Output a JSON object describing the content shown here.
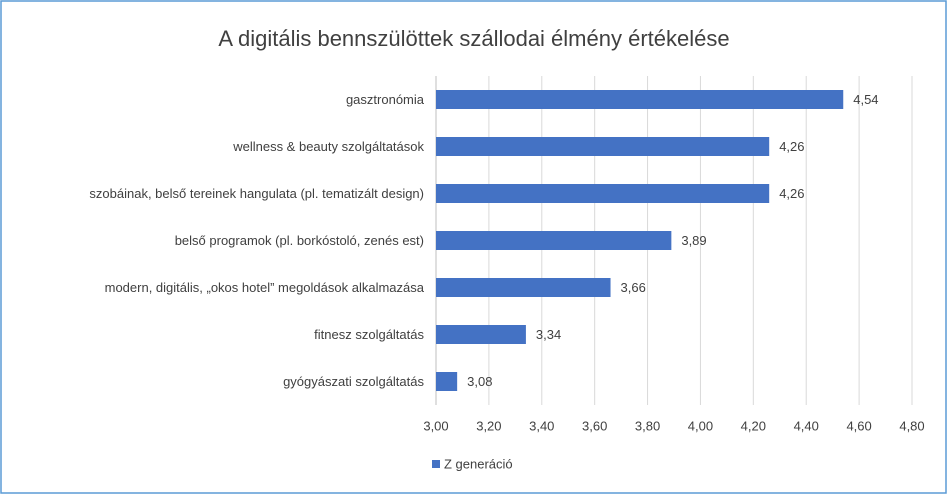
{
  "chart_data": {
    "type": "bar",
    "orientation": "horizontal",
    "title": "A digitális bennszülöttek szállodai élmény értékelése",
    "categories": [
      "gasztronómia",
      "wellness & beauty szolgáltatások",
      "szobáinak, belső tereinek hangulata (pl. tematizált design)",
      "belső programok (pl. borkóstoló, zenés est)",
      "modern, digitális, „okos hotel” megoldások alkalmazása",
      "fitnesz szolgáltatás",
      "gyógyászati szolgáltatás"
    ],
    "series": [
      {
        "name": "Z generáció",
        "color": "#4472c4",
        "values": [
          4.54,
          4.26,
          4.26,
          3.89,
          3.66,
          3.34,
          3.08
        ],
        "value_labels": [
          "4,54",
          "4,26",
          "4,26",
          "3,89",
          "3,66",
          "3,34",
          "3,08"
        ]
      }
    ],
    "xlim": [
      3,
      4.8
    ],
    "xticks": [
      {
        "value": 3,
        "label": "3,00"
      },
      {
        "value": 3.2,
        "label": "3,20"
      },
      {
        "value": 3.4,
        "label": "3,40"
      },
      {
        "value": 3.6,
        "label": "3,60"
      },
      {
        "value": 3.8,
        "label": "3,80"
      },
      {
        "value": 4,
        "label": "4,00"
      },
      {
        "value": 4.2,
        "label": "4,20"
      },
      {
        "value": 4.4,
        "label": "4,40"
      },
      {
        "value": 4.6,
        "label": "4,60"
      },
      {
        "value": 4.8,
        "label": "4,80"
      }
    ],
    "grid": true,
    "legend": "bottom"
  }
}
